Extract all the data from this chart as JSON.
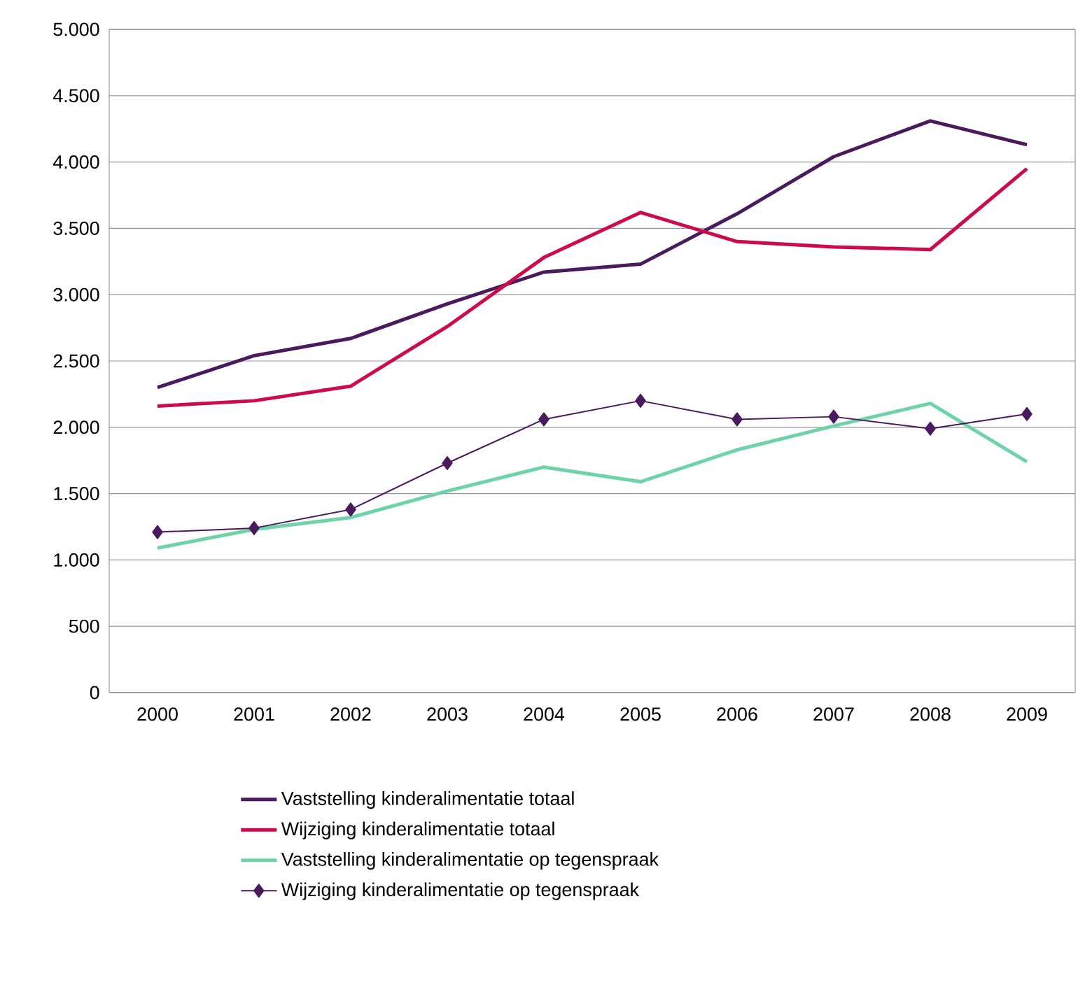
{
  "chart_data": {
    "type": "line",
    "categories": [
      "2000",
      "2001",
      "2002",
      "2003",
      "2004",
      "2005",
      "2006",
      "2007",
      "2008",
      "2009"
    ],
    "series": [
      {
        "name": "Vaststelling kinderalimentatie totaal",
        "color": "#4b1a5e",
        "marker": "none",
        "values": [
          2300,
          2540,
          2670,
          2930,
          3170,
          3230,
          3610,
          4040,
          4310,
          4130
        ]
      },
      {
        "name": "Wijziging kinderalimentatie totaal",
        "color": "#cc0c48",
        "marker": "none",
        "values": [
          2160,
          2200,
          2310,
          2760,
          3280,
          3620,
          3400,
          3360,
          3340,
          3950
        ]
      },
      {
        "name": "Vaststelling kinderalimentatie op tegenspraak",
        "color": "#6ed3a8",
        "marker": "none",
        "values": [
          1090,
          1230,
          1320,
          1520,
          1700,
          1590,
          1830,
          2010,
          2180,
          1740
        ]
      },
      {
        "name": "Wijziging kinderalimentatie op tegenspraak",
        "color": "#4b1a5e",
        "marker": "diamond",
        "values": [
          1210,
          1240,
          1380,
          1730,
          2060,
          2200,
          2060,
          2080,
          1990,
          2100
        ]
      }
    ],
    "ylim": [
      0,
      5000
    ],
    "yticks": [
      0,
      500,
      {
        "value": 1000,
        "label": "1.000"
      },
      {
        "value": 1500,
        "label": "1.500"
      },
      {
        "value": 2000,
        "label": "2.000"
      },
      {
        "value": 2500,
        "label": "2.500"
      },
      {
        "value": 3000,
        "label": "3.000"
      },
      {
        "value": 3500,
        "label": "3.500"
      },
      {
        "value": 4000,
        "label": "4.000"
      },
      {
        "value": 4500,
        "label": "4.500"
      },
      {
        "value": 5000,
        "label": "5.000"
      }
    ],
    "grid": "y",
    "legend": "bottom",
    "line_style": "solid"
  }
}
